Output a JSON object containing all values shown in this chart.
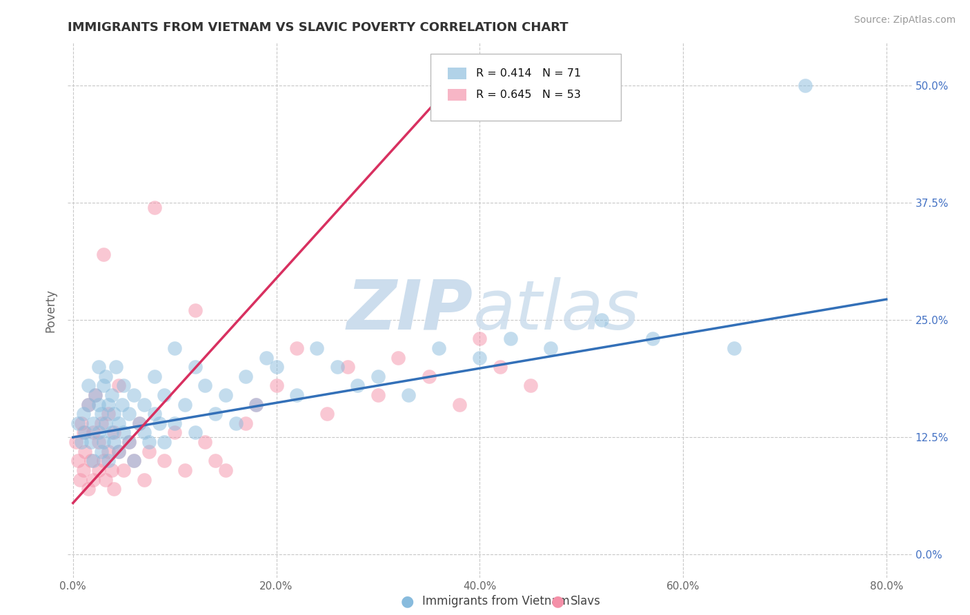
{
  "title": "IMMIGRANTS FROM VIETNAM VS SLAVIC POVERTY CORRELATION CHART",
  "source": "Source: ZipAtlas.com",
  "xlabel_ticks": [
    "0.0%",
    "20.0%",
    "40.0%",
    "60.0%",
    "80.0%"
  ],
  "xlabel_tick_vals": [
    0.0,
    0.2,
    0.4,
    0.6,
    0.8
  ],
  "ylabel_ticks": [
    "0.0%",
    "12.5%",
    "25.0%",
    "37.5%",
    "50.0%"
  ],
  "ylabel_tick_vals": [
    0.0,
    0.125,
    0.25,
    0.375,
    0.5
  ],
  "ylabel": "Poverty",
  "legend_entries": [
    {
      "label": "R = 0.414   N = 71",
      "color": "#aac4e2"
    },
    {
      "label": "R = 0.645   N = 53",
      "color": "#f4a8bc"
    }
  ],
  "legend_bottom": [
    "Immigrants from Vietnam",
    "Slavs"
  ],
  "blue_color": "#88bbdd",
  "pink_color": "#f490a8",
  "blue_line_color": "#3370b8",
  "pink_line_color": "#d83060",
  "watermark_zip": "ZIP",
  "watermark_atlas": "atlas",
  "watermark_color": "#ccdded",
  "background_color": "#ffffff",
  "grid_color": "#c8c8c8",
  "blue_scatter_x": [
    0.005,
    0.008,
    0.01,
    0.012,
    0.015,
    0.015,
    0.018,
    0.02,
    0.02,
    0.022,
    0.025,
    0.025,
    0.025,
    0.028,
    0.028,
    0.03,
    0.03,
    0.032,
    0.032,
    0.035,
    0.035,
    0.038,
    0.038,
    0.04,
    0.04,
    0.042,
    0.045,
    0.045,
    0.048,
    0.05,
    0.05,
    0.055,
    0.055,
    0.06,
    0.06,
    0.065,
    0.07,
    0.07,
    0.075,
    0.08,
    0.08,
    0.085,
    0.09,
    0.09,
    0.1,
    0.1,
    0.11,
    0.12,
    0.12,
    0.13,
    0.14,
    0.15,
    0.16,
    0.17,
    0.18,
    0.19,
    0.2,
    0.22,
    0.24,
    0.26,
    0.28,
    0.3,
    0.33,
    0.36,
    0.4,
    0.43,
    0.47,
    0.52,
    0.57,
    0.65,
    0.72
  ],
  "blue_scatter_y": [
    0.14,
    0.12,
    0.15,
    0.13,
    0.16,
    0.18,
    0.12,
    0.1,
    0.14,
    0.17,
    0.13,
    0.16,
    0.2,
    0.11,
    0.15,
    0.12,
    0.18,
    0.14,
    0.19,
    0.1,
    0.16,
    0.13,
    0.17,
    0.12,
    0.15,
    0.2,
    0.11,
    0.14,
    0.16,
    0.13,
    0.18,
    0.12,
    0.15,
    0.1,
    0.17,
    0.14,
    0.13,
    0.16,
    0.12,
    0.15,
    0.19,
    0.14,
    0.12,
    0.17,
    0.14,
    0.22,
    0.16,
    0.2,
    0.13,
    0.18,
    0.15,
    0.17,
    0.14,
    0.19,
    0.16,
    0.21,
    0.2,
    0.17,
    0.22,
    0.2,
    0.18,
    0.19,
    0.17,
    0.22,
    0.21,
    0.23,
    0.22,
    0.25,
    0.23,
    0.22,
    0.5
  ],
  "pink_scatter_x": [
    0.003,
    0.005,
    0.007,
    0.008,
    0.01,
    0.01,
    0.012,
    0.015,
    0.015,
    0.018,
    0.02,
    0.02,
    0.022,
    0.025,
    0.025,
    0.028,
    0.03,
    0.03,
    0.032,
    0.035,
    0.035,
    0.038,
    0.04,
    0.04,
    0.045,
    0.045,
    0.05,
    0.055,
    0.06,
    0.065,
    0.07,
    0.075,
    0.08,
    0.09,
    0.1,
    0.11,
    0.12,
    0.13,
    0.14,
    0.15,
    0.17,
    0.18,
    0.2,
    0.22,
    0.25,
    0.27,
    0.3,
    0.32,
    0.35,
    0.38,
    0.4,
    0.42,
    0.45
  ],
  "pink_scatter_y": [
    0.12,
    0.1,
    0.08,
    0.14,
    0.09,
    0.13,
    0.11,
    0.07,
    0.16,
    0.1,
    0.08,
    0.13,
    0.17,
    0.09,
    0.12,
    0.14,
    0.1,
    0.32,
    0.08,
    0.11,
    0.15,
    0.09,
    0.07,
    0.13,
    0.11,
    0.18,
    0.09,
    0.12,
    0.1,
    0.14,
    0.08,
    0.11,
    0.37,
    0.1,
    0.13,
    0.09,
    0.26,
    0.12,
    0.1,
    0.09,
    0.14,
    0.16,
    0.18,
    0.22,
    0.15,
    0.2,
    0.17,
    0.21,
    0.19,
    0.16,
    0.23,
    0.2,
    0.18
  ],
  "blue_line_x": [
    0.0,
    0.8
  ],
  "blue_line_y": [
    0.125,
    0.272
  ],
  "pink_line_x": [
    0.0,
    0.355
  ],
  "pink_line_y": [
    0.055,
    0.48
  ],
  "xlim": [
    -0.005,
    0.825
  ],
  "ylim": [
    -0.025,
    0.545
  ]
}
